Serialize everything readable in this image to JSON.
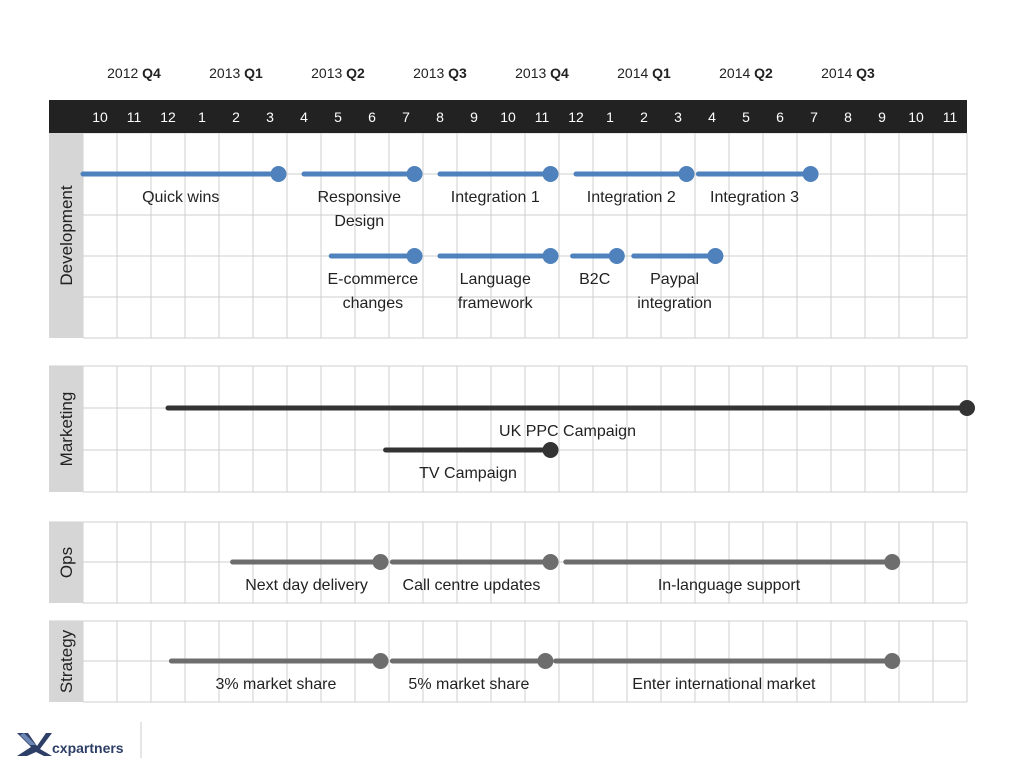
{
  "colors": {
    "month_bar": "#222222",
    "grid": "#cfcfcf",
    "lane_label_bg": "#d6d6d6",
    "development": "#4f81bd",
    "marketing": "#333333",
    "ops_strategy": "#6d6d6d",
    "logo": "#2d3f66"
  },
  "quarters": [
    {
      "year": "2012",
      "q": "Q4"
    },
    {
      "year": "2013",
      "q": "Q1"
    },
    {
      "year": "2013",
      "q": "Q2"
    },
    {
      "year": "2013",
      "q": "Q3"
    },
    {
      "year": "2013",
      "q": "Q4"
    },
    {
      "year": "2014",
      "q": "Q1"
    },
    {
      "year": "2014",
      "q": "Q2"
    },
    {
      "year": "2014",
      "q": "Q3"
    }
  ],
  "months": [
    "10",
    "11",
    "12",
    "1",
    "2",
    "3",
    "4",
    "5",
    "6",
    "7",
    "8",
    "9",
    "10",
    "11",
    "12",
    "1",
    "2",
    "3",
    "4",
    "5",
    "6",
    "7",
    "8",
    "9",
    "10",
    "11"
  ],
  "lanes": [
    {
      "name": "Development",
      "color_key": "development",
      "rows": 5,
      "items": [
        {
          "label": [
            "Quick wins"
          ],
          "start": 0.0,
          "end": 5.75,
          "row": 1
        },
        {
          "label": [
            "Responsive",
            "Design"
          ],
          "start": 6.5,
          "end": 9.75,
          "row": 1
        },
        {
          "label": [
            "Integration 1"
          ],
          "start": 10.5,
          "end": 13.75,
          "row": 1
        },
        {
          "label": [
            "Integration 2"
          ],
          "start": 14.5,
          "end": 17.75,
          "row": 1
        },
        {
          "label": [
            "Integration 3"
          ],
          "start": 18.1,
          "end": 21.4,
          "row": 1
        },
        {
          "label": [
            "E-commerce",
            "changes"
          ],
          "start": 7.3,
          "end": 9.75,
          "row": 3
        },
        {
          "label": [
            "Language",
            "framework"
          ],
          "start": 10.5,
          "end": 13.75,
          "row": 3
        },
        {
          "label": [
            "B2C"
          ],
          "start": 14.4,
          "end": 15.7,
          "row": 3
        },
        {
          "label": [
            "Paypal",
            "integration"
          ],
          "start": 16.2,
          "end": 18.6,
          "row": 3
        }
      ]
    },
    {
      "name": "Marketing",
      "color_key": "marketing",
      "rows": 3,
      "items": [
        {
          "label": [
            "UK PPC Campaign"
          ],
          "start": 2.5,
          "end": 26.0,
          "row": 1
        },
        {
          "label": [
            "TV Campaign"
          ],
          "start": 8.9,
          "end": 13.75,
          "row": 2
        }
      ]
    },
    {
      "name": "Ops",
      "color_key": "ops_strategy",
      "rows": 2,
      "items": [
        {
          "label": [
            "Next day delivery"
          ],
          "start": 4.4,
          "end": 8.75,
          "row": 1
        },
        {
          "label": [
            "Call centre updates"
          ],
          "start": 9.1,
          "end": 13.75,
          "row": 1
        },
        {
          "label": [
            "In-language support"
          ],
          "start": 14.2,
          "end": 23.8,
          "row": 1
        }
      ]
    },
    {
      "name": "Strategy",
      "color_key": "ops_strategy",
      "rows": 2,
      "items": [
        {
          "label": [
            "3% market share"
          ],
          "start": 2.6,
          "end": 8.75,
          "row": 1
        },
        {
          "label": [
            "5% market share"
          ],
          "start": 9.1,
          "end": 13.6,
          "row": 1
        },
        {
          "label": [
            "Enter international market"
          ],
          "start": 13.9,
          "end": 23.8,
          "row": 1
        }
      ]
    }
  ],
  "logo": {
    "text": "cxpartners"
  }
}
